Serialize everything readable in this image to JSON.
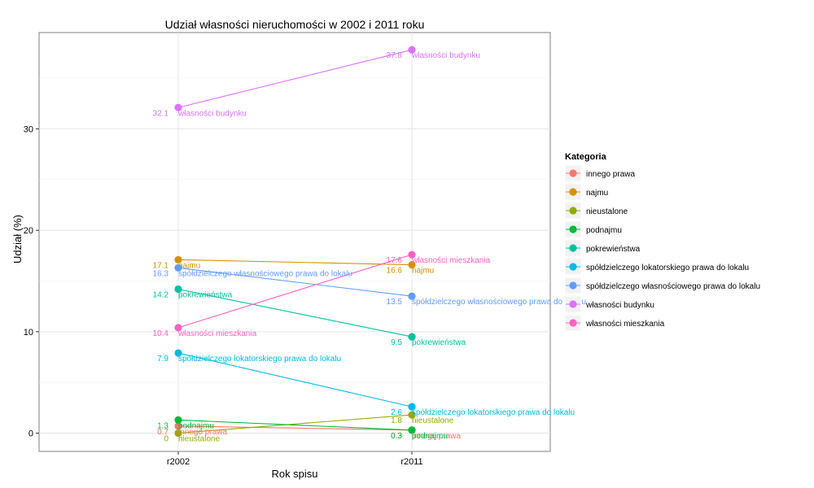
{
  "chart_data": {
    "type": "line",
    "title": "Udział własności nieruchomości w 2002 i 2011 roku",
    "xlabel": "Rok spisu",
    "ylabel": "Udział (%)",
    "categories": [
      "r2002",
      "r2011"
    ],
    "ylim": [
      -1.8,
      39.5
    ],
    "yticks": [
      0,
      10,
      20,
      30
    ],
    "grid": true,
    "legend": {
      "title": "Kategoria",
      "position": "right"
    },
    "series": [
      {
        "name": "innego prawa",
        "color": "#F8766D",
        "values": [
          0.7,
          0.3
        ],
        "value_labels": [
          "0.7",
          "0.3"
        ]
      },
      {
        "name": "najmu",
        "color": "#D39200",
        "values": [
          17.1,
          16.6
        ],
        "value_labels": [
          "17.1",
          "16.6"
        ]
      },
      {
        "name": "nieustalone",
        "color": "#93AA00",
        "values": [
          0,
          1.8
        ],
        "value_labels": [
          "0",
          "1.8"
        ]
      },
      {
        "name": "podnajmu",
        "color": "#00BA38",
        "values": [
          1.3,
          0.3
        ],
        "value_labels": [
          "1.3",
          "0.3"
        ]
      },
      {
        "name": "pokrewieństwa",
        "color": "#00C19F",
        "values": [
          14.2,
          9.5
        ],
        "value_labels": [
          "14.2",
          "9.5"
        ]
      },
      {
        "name": "spółdzielczego lokatorskiego prawa do lokalu",
        "color": "#00B9E3",
        "values": [
          7.9,
          2.6
        ],
        "value_labels": [
          "7.9",
          "2.6"
        ]
      },
      {
        "name": "spółdzielczego własnościowego prawa do lokalu",
        "color": "#619CFF",
        "values": [
          16.3,
          13.5
        ],
        "value_labels": [
          "16.3",
          "13.5"
        ]
      },
      {
        "name": "własności budynku",
        "color": "#DB72FB",
        "values": [
          32.1,
          37.8
        ],
        "value_labels": [
          "32.1",
          "37.8"
        ]
      },
      {
        "name": "własności mieszkania",
        "color": "#FF61C3",
        "values": [
          10.4,
          17.6
        ],
        "value_labels": [
          "10.4",
          "17.6"
        ]
      }
    ]
  }
}
